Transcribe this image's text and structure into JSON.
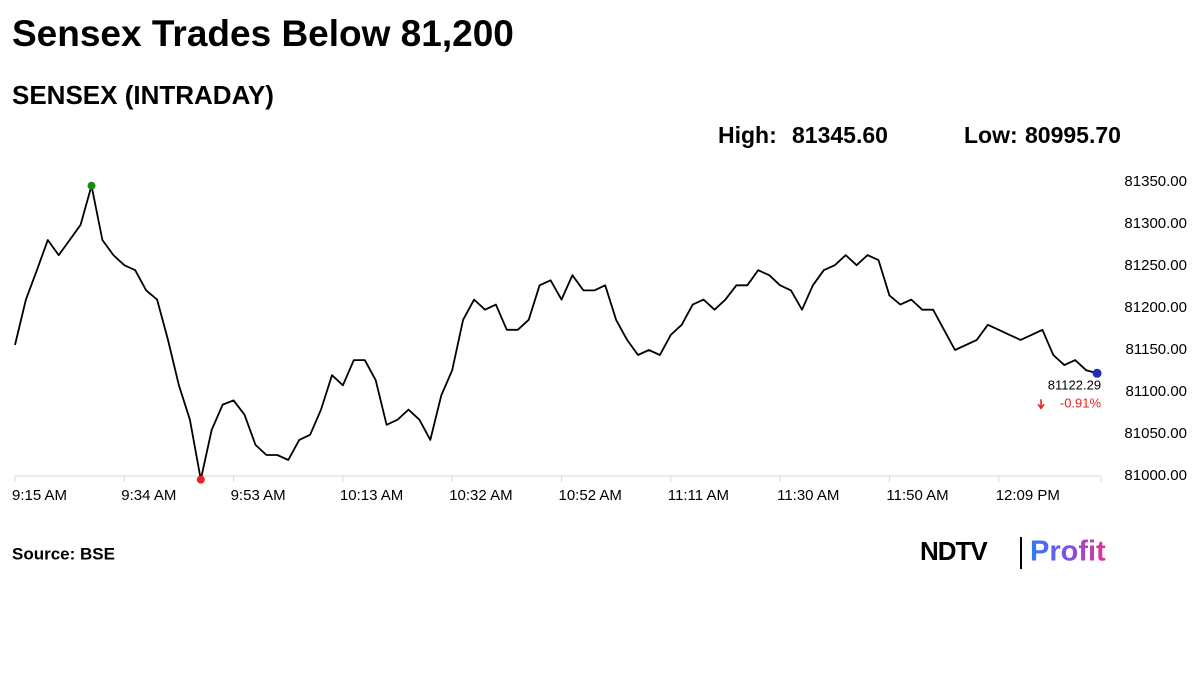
{
  "chart_data": {
    "type": "line",
    "title": "Sensex Trades Below 81,200",
    "subtitle": "SENSEX (INTRADAY)",
    "stats": [
      {
        "label": "High:",
        "value": "81345.60"
      },
      {
        "label": "Low:",
        "value": "80995.70"
      }
    ],
    "source": "Source: BSE",
    "logo": {
      "left": "NDTV",
      "right": "Profit"
    },
    "change": "-0.91%",
    "color": "#000000",
    "high_color": "#1a8a1a",
    "low_color": "#e8231b",
    "last_color": "#1d2fb8",
    "change_color": "#e8231b",
    "categories": [
      "9:15 AM",
      null,
      null,
      null,
      null,
      null,
      null,
      null,
      null,
      null,
      "9:34 AM",
      null,
      null,
      null,
      null,
      null,
      null,
      null,
      null,
      null,
      "9:53 AM",
      null,
      null,
      null,
      null,
      null,
      null,
      null,
      null,
      null,
      "10:13 AM",
      null,
      null,
      null,
      null,
      null,
      null,
      null,
      null,
      null,
      "10:32 AM",
      null,
      null,
      null,
      null,
      null,
      null,
      null,
      null,
      null,
      "10:52 AM",
      null,
      null,
      null,
      null,
      null,
      null,
      null,
      null,
      null,
      "11:11 AM",
      null,
      null,
      null,
      null,
      null,
      null,
      null,
      null,
      null,
      "11:30 AM",
      null,
      null,
      null,
      null,
      null,
      null,
      null,
      null,
      null,
      "11:50 AM",
      null,
      null,
      null,
      null,
      null,
      null,
      null,
      null,
      null,
      "12:09 PM",
      null,
      null,
      null,
      null,
      null,
      null,
      null,
      null,
      null
    ],
    "values": [
      81156,
      81210,
      81245,
      81281,
      81263,
      81281,
      81299,
      81345.6,
      81281,
      81263,
      81251,
      81245,
      81221,
      81210,
      81162,
      81108,
      81067,
      80995.7,
      81055,
      81085,
      81090,
      81073,
      81037,
      81025,
      81025,
      81019,
      81043,
      81049,
      81079,
      81120,
      81108,
      81138,
      81138,
      81114,
      81061,
      81067,
      81079,
      81067,
      81043,
      81096,
      81126,
      81186,
      81210,
      81198,
      81204,
      81174,
      81174,
      81186,
      81227,
      81233,
      81210,
      81239,
      81221,
      81221,
      81227,
      81186,
      81162,
      81144,
      81150,
      81144,
      81168,
      81180,
      81204,
      81210,
      81198,
      81210,
      81227,
      81227,
      81245,
      81239,
      81227,
      81221,
      81198,
      81227,
      81245,
      81251,
      81263,
      81251,
      81263,
      81257,
      81215,
      81204,
      81210,
      81198,
      81198,
      81174,
      81150,
      81156,
      81162,
      81180,
      81174,
      81168,
      81162,
      81168,
      81174,
      81144,
      81132,
      81138,
      81126,
      81122.29
    ],
    "ylim": [
      81000,
      81350
    ],
    "yticks": [
      {
        "value": 81000,
        "label": "81000.00"
      },
      {
        "value": 81050,
        "label": "81050.00"
      },
      {
        "value": 81100,
        "label": "81100.00"
      },
      {
        "value": 81150,
        "label": "81150.00"
      },
      {
        "value": 81200,
        "label": "81200.00"
      },
      {
        "value": 81250,
        "label": "81250.00"
      },
      {
        "value": 81300,
        "label": "81300.00"
      },
      {
        "value": 81350,
        "label": "81350.00"
      }
    ]
  }
}
